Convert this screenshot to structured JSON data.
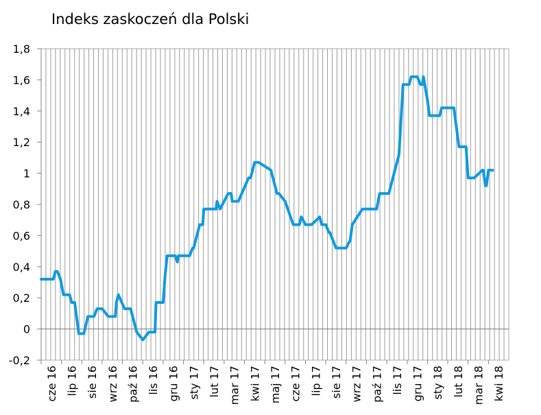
{
  "chart_data": {
    "type": "line",
    "title": "Indeks zaskoczeń dla Polski",
    "xlabel": "",
    "ylabel": "",
    "ylim": [
      -0.2,
      1.8
    ],
    "y_ticks": [
      "-0,2",
      "0",
      "0,2",
      "0,4",
      "0,6",
      "0,8",
      "1",
      "1,2",
      "1,4",
      "1,6",
      "1,8"
    ],
    "x_ticks": [
      "cze 16",
      "lip 16",
      "sie 16",
      "wrz 16",
      "paź 16",
      "lis 16",
      "gru 16",
      "sty 17",
      "lut 17",
      "mar 17",
      "kwi 17",
      "maj 17",
      "cze 17",
      "lip 17",
      "sie 17",
      "wrz 17",
      "paź 17",
      "lis 17",
      "gru 17",
      "sty 18",
      "lut 18",
      "mar 18",
      "kwi 18"
    ],
    "grid": "vertical",
    "series": [
      {
        "color": "#0f9ae0",
        "x": [
          0,
          0.6,
          0.7,
          0.8,
          0.95,
          1.1,
          1.4,
          1.5,
          1.65,
          1.85,
          1.9,
          2.1,
          2.3,
          2.6,
          2.75,
          3.0,
          3.3,
          3.55,
          3.6,
          3.65,
          3.7,
          3.8,
          4.1,
          4.2,
          4.4,
          4.7,
          5.0,
          5.3,
          5.6,
          5.65,
          5.75,
          6.0,
          6.1,
          6.2,
          6.6,
          6.7,
          6.75,
          6.8,
          7.3,
          7.45,
          7.5,
          7.8,
          7.95,
          8.0,
          8.2,
          8.25,
          8.3,
          8.4,
          8.6,
          8.65,
          8.8,
          9.2,
          9.35,
          9.4,
          9.7,
          10.2,
          10.3,
          10.5,
          10.6,
          10.7,
          11.3,
          11.6,
          11.7,
          12.0,
          12.4,
          12.5,
          12.7,
          12.8,
          13.0,
          13.3,
          13.7,
          13.8,
          14.0,
          14.15,
          14.2,
          14.5,
          14.75,
          15.0,
          15.2,
          15.3,
          15.8,
          16.1,
          16.3,
          16.5,
          16.65,
          16.8,
          16.9,
          17.0,
          17.1,
          17.3,
          17.4,
          17.6,
          17.8,
          17.9,
          18.1,
          18.2,
          18.5,
          18.65,
          18.75,
          18.8,
          19.0,
          19.1,
          19.2,
          19.4,
          19.6,
          19.7,
          20.0,
          20.3,
          20.5,
          20.55,
          20.6,
          20.7,
          20.9,
          21.0,
          21.2,
          21.3,
          21.7,
          21.75,
          21.85,
          21.9,
          22.0,
          22.1,
          22.2
        ],
        "y": [
          0.32,
          0.32,
          0.37,
          0.37,
          0.32,
          0.22,
          0.22,
          0.17,
          0.17,
          -0.03,
          -0.03,
          -0.03,
          0.08,
          0.08,
          0.13,
          0.13,
          0.08,
          0.08,
          0.08,
          0.08,
          0.17,
          0.22,
          0.13,
          0.13,
          0.13,
          -0.02,
          -0.07,
          -0.02,
          -0.02,
          0.17,
          0.17,
          0.17,
          0.35,
          0.47,
          0.47,
          0.43,
          0.47,
          0.47,
          0.47,
          0.52,
          0.52,
          0.67,
          0.67,
          0.77,
          0.77,
          0.77,
          0.77,
          0.77,
          0.77,
          0.82,
          0.77,
          0.87,
          0.87,
          0.82,
          0.82,
          0.97,
          0.97,
          1.07,
          1.07,
          1.07,
          1.02,
          0.87,
          0.87,
          0.82,
          0.67,
          0.67,
          0.67,
          0.72,
          0.67,
          0.67,
          0.72,
          0.67,
          0.67,
          0.62,
          0.62,
          0.52,
          0.52,
          0.52,
          0.57,
          0.67,
          0.77,
          0.77,
          0.77,
          0.77,
          0.87,
          0.87,
          0.87,
          0.87,
          0.87,
          0.97,
          1.02,
          1.12,
          1.57,
          1.57,
          1.57,
          1.62,
          1.62,
          1.57,
          1.57,
          1.62,
          1.47,
          1.37,
          1.37,
          1.37,
          1.37,
          1.42,
          1.42,
          1.42,
          1.22,
          1.17,
          1.17,
          1.17,
          1.17,
          0.97,
          0.97,
          0.97,
          1.02,
          1.02,
          0.92,
          0.92,
          1.02,
          1.02,
          1.02
        ]
      }
    ]
  }
}
